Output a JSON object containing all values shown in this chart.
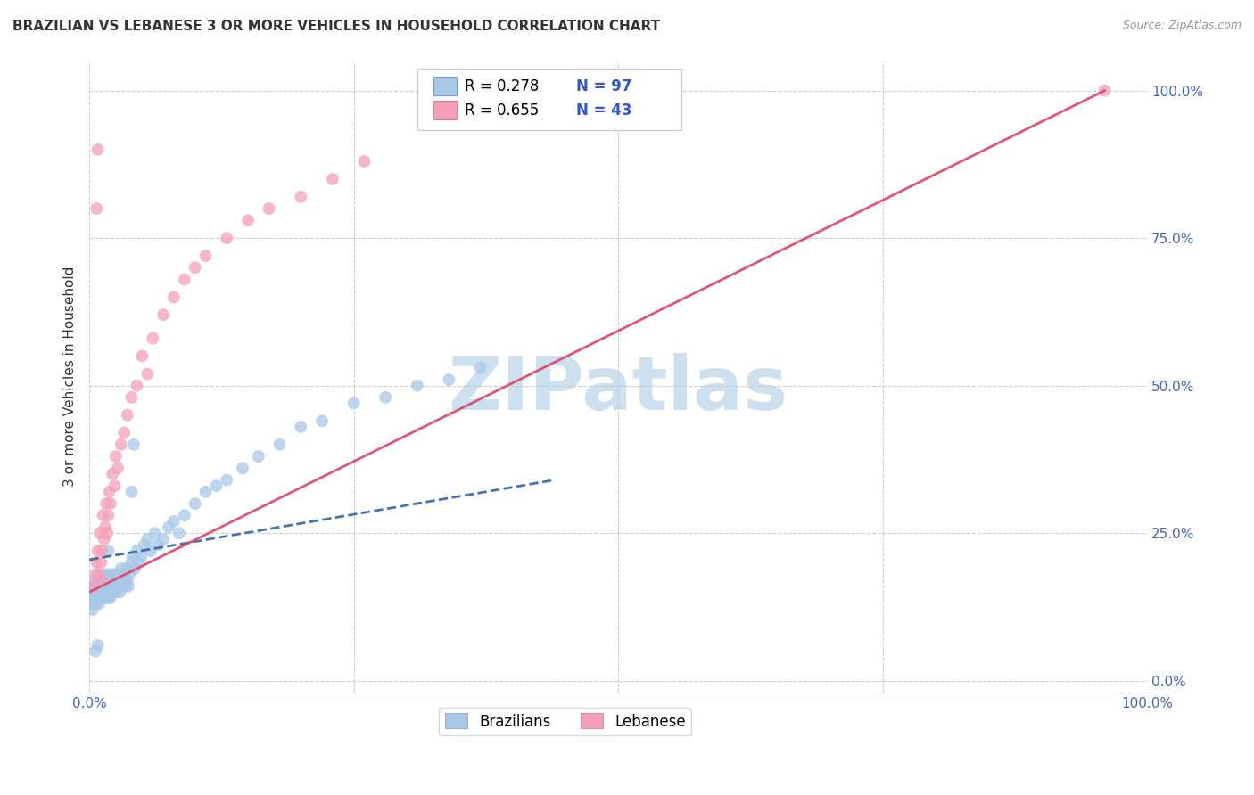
{
  "title": "BRAZILIAN VS LEBANESE 3 OR MORE VEHICLES IN HOUSEHOLD CORRELATION CHART",
  "source": "Source: ZipAtlas.com",
  "ylabel": "3 or more Vehicles in Household",
  "xlabel": "",
  "xlim": [
    0.0,
    1.0
  ],
  "ylim": [
    -0.02,
    1.05
  ],
  "xtick_positions": [
    0.0,
    0.25,
    0.5,
    0.75,
    1.0
  ],
  "xtick_labels": [
    "0.0%",
    "",
    "",
    "",
    "100.0%"
  ],
  "ytick_positions": [
    0.0,
    0.25,
    0.5,
    0.75,
    1.0
  ],
  "ytick_labels": [
    "0.0%",
    "25.0%",
    "50.0%",
    "75.0%",
    "100.0%"
  ],
  "grid_color": "#cccccc",
  "background_color": "#ffffff",
  "brazilian_color": "#a8c8e8",
  "lebanese_color": "#f4a0b8",
  "brazilian_line_color": "#3366aa",
  "lebanese_line_color": "#dd4466",
  "legend_label1": "Brazilians",
  "legend_label2": "Lebanese",
  "R_brazilian": 0.278,
  "N_brazilian": 97,
  "R_lebanese": 0.655,
  "N_lebanese": 43,
  "watermark": "ZIPatlas",
  "watermark_color": "#cce0f0",
  "brazilian_x": [
    0.002,
    0.003,
    0.003,
    0.004,
    0.004,
    0.005,
    0.005,
    0.005,
    0.006,
    0.006,
    0.006,
    0.007,
    0.007,
    0.008,
    0.008,
    0.008,
    0.009,
    0.009,
    0.01,
    0.01,
    0.01,
    0.011,
    0.011,
    0.012,
    0.012,
    0.013,
    0.013,
    0.014,
    0.014,
    0.015,
    0.015,
    0.016,
    0.016,
    0.017,
    0.017,
    0.018,
    0.018,
    0.019,
    0.019,
    0.02,
    0.02,
    0.021,
    0.021,
    0.022,
    0.022,
    0.023,
    0.024,
    0.025,
    0.025,
    0.026,
    0.027,
    0.028,
    0.029,
    0.03,
    0.031,
    0.032,
    0.033,
    0.034,
    0.035,
    0.036,
    0.037,
    0.038,
    0.04,
    0.041,
    0.043,
    0.045,
    0.047,
    0.049,
    0.052,
    0.055,
    0.058,
    0.062,
    0.065,
    0.07,
    0.075,
    0.08,
    0.085,
    0.09,
    0.1,
    0.11,
    0.12,
    0.13,
    0.145,
    0.16,
    0.18,
    0.2,
    0.22,
    0.25,
    0.28,
    0.31,
    0.34,
    0.37,
    0.04,
    0.042,
    0.018,
    0.008,
    0.006
  ],
  "brazilian_y": [
    0.14,
    0.15,
    0.12,
    0.16,
    0.13,
    0.15,
    0.14,
    0.17,
    0.16,
    0.15,
    0.13,
    0.14,
    0.16,
    0.15,
    0.14,
    0.17,
    0.16,
    0.13,
    0.15,
    0.14,
    0.17,
    0.16,
    0.15,
    0.14,
    0.18,
    0.15,
    0.16,
    0.14,
    0.17,
    0.16,
    0.15,
    0.14,
    0.18,
    0.15,
    0.16,
    0.14,
    0.17,
    0.15,
    0.16,
    0.14,
    0.18,
    0.16,
    0.17,
    0.15,
    0.16,
    0.18,
    0.16,
    0.17,
    0.15,
    0.18,
    0.16,
    0.17,
    0.15,
    0.19,
    0.16,
    0.17,
    0.18,
    0.16,
    0.19,
    0.17,
    0.16,
    0.18,
    0.2,
    0.21,
    0.19,
    0.22,
    0.2,
    0.21,
    0.23,
    0.24,
    0.22,
    0.25,
    0.23,
    0.24,
    0.26,
    0.27,
    0.25,
    0.28,
    0.3,
    0.32,
    0.33,
    0.34,
    0.36,
    0.38,
    0.4,
    0.43,
    0.44,
    0.47,
    0.48,
    0.5,
    0.51,
    0.53,
    0.32,
    0.4,
    0.22,
    0.06,
    0.05
  ],
  "lebanese_x": [
    0.004,
    0.006,
    0.007,
    0.008,
    0.009,
    0.01,
    0.011,
    0.012,
    0.013,
    0.014,
    0.015,
    0.016,
    0.017,
    0.018,
    0.019,
    0.02,
    0.022,
    0.024,
    0.025,
    0.027,
    0.03,
    0.033,
    0.036,
    0.04,
    0.045,
    0.05,
    0.055,
    0.06,
    0.07,
    0.08,
    0.09,
    0.1,
    0.11,
    0.13,
    0.15,
    0.17,
    0.2,
    0.23,
    0.26,
    0.007,
    0.008,
    0.96,
    0.012
  ],
  "lebanese_y": [
    0.16,
    0.18,
    0.2,
    0.22,
    0.18,
    0.25,
    0.2,
    0.22,
    0.28,
    0.24,
    0.26,
    0.3,
    0.25,
    0.28,
    0.32,
    0.3,
    0.35,
    0.33,
    0.38,
    0.36,
    0.4,
    0.42,
    0.45,
    0.48,
    0.5,
    0.55,
    0.52,
    0.58,
    0.62,
    0.65,
    0.68,
    0.7,
    0.72,
    0.75,
    0.78,
    0.8,
    0.82,
    0.85,
    0.88,
    0.8,
    0.9,
    1.0,
    0.17
  ],
  "brazilian_line_x": [
    0.0,
    0.44
  ],
  "brazilian_line_y": [
    0.205,
    0.34
  ],
  "lebanese_line_x": [
    0.0,
    0.96
  ],
  "lebanese_line_y": [
    0.15,
    1.0
  ]
}
